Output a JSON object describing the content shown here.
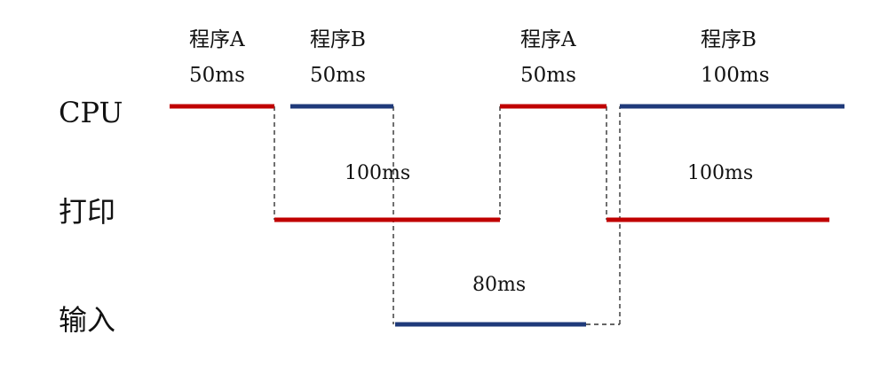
{
  "diagram": {
    "rows": [
      {
        "id": "cpu",
        "label": "CPU"
      },
      {
        "id": "print",
        "label": "打印"
      },
      {
        "id": "input",
        "label": "输入"
      }
    ],
    "cpu_labels": [
      {
        "name": "程序A",
        "time": "50ms"
      },
      {
        "name": "程序B",
        "time": "50ms"
      },
      {
        "name": "程序A",
        "time": "50ms"
      },
      {
        "name": "程序B",
        "time": "100ms"
      }
    ],
    "durations": {
      "print_1": "100ms",
      "print_2": "100ms",
      "input_1": "80ms"
    },
    "colors": {
      "program_a": "#c00000",
      "program_b": "#1f3a7a",
      "dashed": "#333333"
    }
  }
}
